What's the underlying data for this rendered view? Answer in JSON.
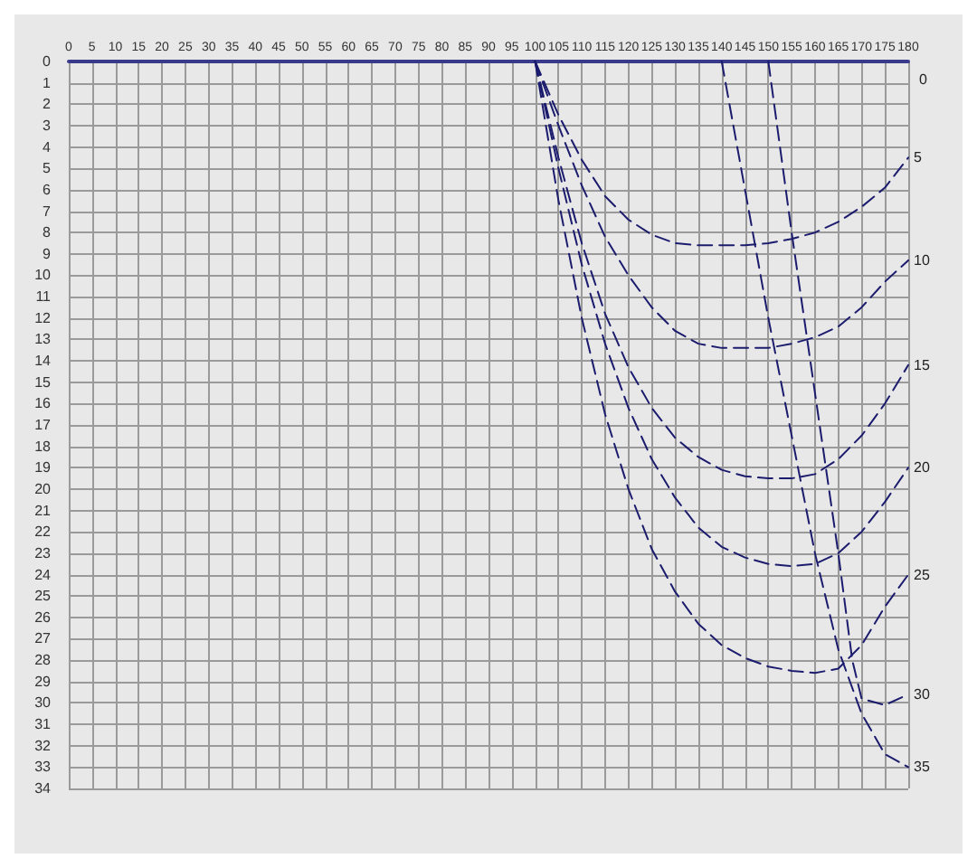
{
  "chart_data": {
    "type": "line",
    "line_style": "dashed",
    "marker": "none",
    "grid": true,
    "xlim": [
      0,
      180
    ],
    "xticks": [
      0,
      5,
      10,
      15,
      20,
      25,
      30,
      35,
      40,
      45,
      50,
      55,
      60,
      65,
      70,
      75,
      80,
      85,
      90,
      95,
      100,
      105,
      110,
      115,
      120,
      125,
      130,
      135,
      140,
      145,
      150,
      155,
      160,
      165,
      170,
      175,
      180
    ],
    "ylim": [
      34,
      0
    ],
    "yticks": [
      0,
      1,
      2,
      3,
      4,
      5,
      6,
      7,
      8,
      9,
      10,
      11,
      12,
      13,
      14,
      15,
      16,
      17,
      18,
      19,
      20,
      21,
      22,
      23,
      24,
      25,
      26,
      27,
      28,
      29,
      30,
      31,
      32,
      33,
      34
    ],
    "series": [
      {
        "name": "5",
        "color": "#1c1c6e",
        "x": [
          100,
          105,
          110,
          115,
          120,
          125,
          130,
          135,
          140,
          145,
          150,
          155,
          160,
          165,
          170,
          175,
          180
        ],
        "values": [
          0,
          2.5,
          4.6,
          6.3,
          7.4,
          8.1,
          8.5,
          8.6,
          8.6,
          8.6,
          8.5,
          8.3,
          8,
          7.5,
          6.8,
          5.9,
          4.5
        ]
      },
      {
        "name": "10",
        "color": "#1c1c6e",
        "x": [
          100,
          105,
          110,
          115,
          120,
          125,
          130,
          135,
          140,
          145,
          150,
          155,
          160,
          165,
          170,
          175,
          180
        ],
        "values": [
          0,
          3,
          5.8,
          8.2,
          10,
          11.5,
          12.6,
          13.2,
          13.4,
          13.4,
          13.4,
          13.2,
          12.9,
          12.4,
          11.5,
          10.3,
          9.3
        ]
      },
      {
        "name": "15",
        "color": "#1c1c6e",
        "x": [
          100,
          105,
          110,
          115,
          120,
          125,
          130,
          135,
          140,
          145,
          150,
          155,
          160,
          165,
          170,
          175,
          180
        ],
        "values": [
          0,
          4.5,
          8.5,
          11.8,
          14.3,
          16.2,
          17.6,
          18.5,
          19.1,
          19.4,
          19.5,
          19.5,
          19.3,
          18.6,
          17.5,
          16,
          14.2
        ]
      },
      {
        "name": "20",
        "color": "#1c1c6e",
        "x": [
          100,
          105,
          110,
          115,
          120,
          125,
          130,
          135,
          140,
          145,
          150,
          155,
          160,
          165,
          170,
          175,
          180
        ],
        "values": [
          0,
          5,
          9.5,
          13.2,
          16.2,
          18.6,
          20.4,
          21.8,
          22.7,
          23.2,
          23.5,
          23.6,
          23.5,
          23,
          22,
          20.6,
          19
        ]
      },
      {
        "name": "25",
        "color": "#1c1c6e",
        "x": [
          100,
          105,
          110,
          115,
          120,
          125,
          130,
          135,
          140,
          145,
          150,
          155,
          160,
          165,
          170,
          175,
          180
        ],
        "values": [
          0,
          6.5,
          12,
          16.5,
          20,
          22.8,
          24.8,
          26.3,
          27.3,
          27.9,
          28.3,
          28.5,
          28.6,
          28.4,
          27.3,
          25.5,
          24
        ]
      },
      {
        "name": "30",
        "color": "#1c1c6e",
        "x": [
          150,
          155,
          160,
          165,
          168,
          170,
          175,
          180
        ],
        "values": [
          0,
          8,
          15.5,
          23,
          28,
          29.8,
          30.1,
          29.6
        ]
      },
      {
        "name": "35",
        "color": "#1c1c6e",
        "x": [
          140,
          145,
          150,
          155,
          160,
          165,
          170,
          175,
          180
        ],
        "values": [
          0,
          6,
          12,
          17.5,
          23,
          27.5,
          30.5,
          32.4,
          33
        ]
      }
    ],
    "annotations": [
      "0"
    ]
  }
}
